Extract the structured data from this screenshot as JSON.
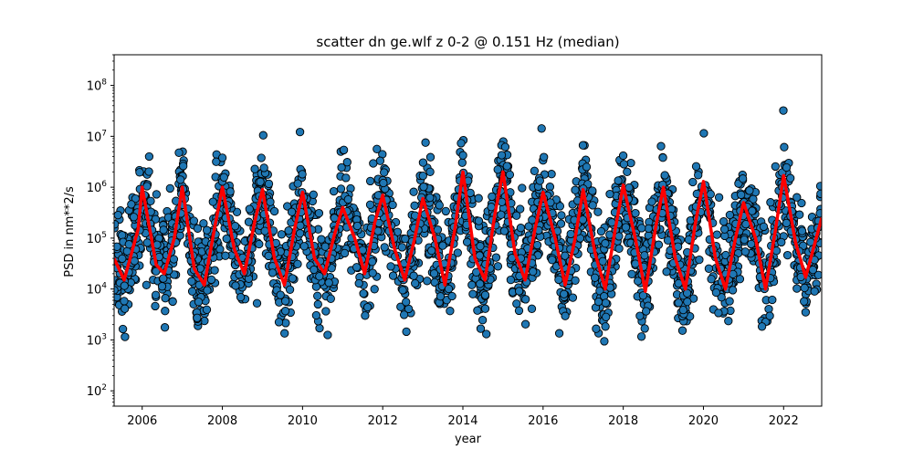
{
  "chart_data": {
    "type": "scatter",
    "title": "scatter dn ge.wlf z 0-2 @ 0.151 Hz (median)",
    "xlabel": "year",
    "ylabel": "PSD in nm**2/s",
    "xlim": [
      2005.3,
      2022.95
    ],
    "ylim": [
      50,
      400000000
    ],
    "yscale": "log",
    "grid": false,
    "x_ticks": [
      2006,
      2008,
      2010,
      2012,
      2014,
      2016,
      2018,
      2020,
      2022
    ],
    "x_tick_labels": [
      "2006",
      "2008",
      "2010",
      "2012",
      "2014",
      "2016",
      "2018",
      "2020",
      "2022"
    ],
    "y_ticks": [
      100,
      1000,
      10000,
      100000,
      1000000,
      10000000,
      100000000
    ],
    "y_tick_exponents": [
      "2",
      "3",
      "4",
      "5",
      "6",
      "7",
      "8"
    ],
    "y_tick_base": "10",
    "colors": {
      "scatter_fill": "#1f77b4",
      "scatter_edge": "#000000",
      "median_line": "#ff0000"
    },
    "series": [
      {
        "kind": "median_line",
        "x": [
          2005.3,
          2005.55,
          2005.9,
          2006.0,
          2006.35,
          2006.55,
          2006.8,
          2007.0,
          2007.3,
          2007.55,
          2007.8,
          2008.0,
          2008.3,
          2008.55,
          2008.8,
          2009.0,
          2009.3,
          2009.55,
          2009.8,
          2010.0,
          2010.3,
          2010.55,
          2010.8,
          2011.0,
          2011.3,
          2011.55,
          2011.8,
          2012.0,
          2012.3,
          2012.55,
          2012.8,
          2013.0,
          2013.3,
          2013.55,
          2013.8,
          2014.0,
          2014.3,
          2014.55,
          2014.8,
          2015.0,
          2015.3,
          2015.55,
          2015.8,
          2016.0,
          2016.3,
          2016.55,
          2016.8,
          2017.0,
          2017.3,
          2017.55,
          2017.8,
          2018.0,
          2018.3,
          2018.55,
          2018.8,
          2019.0,
          2019.3,
          2019.55,
          2019.8,
          2020.0,
          2020.3,
          2020.55,
          2020.8,
          2021.0,
          2021.3,
          2021.55,
          2021.8,
          2022.0,
          2022.3,
          2022.55,
          2022.95
        ],
        "y": [
          40000,
          15000,
          150000,
          1000000,
          30000,
          20000,
          100000,
          1000000,
          25000,
          12000,
          150000,
          1000000,
          60000,
          20000,
          200000,
          900000,
          40000,
          12000,
          150000,
          800000,
          40000,
          20000,
          120000,
          400000,
          100000,
          20000,
          200000,
          700000,
          60000,
          15000,
          100000,
          600000,
          100000,
          12000,
          150000,
          2000000,
          40000,
          15000,
          300000,
          2000000,
          50000,
          15000,
          150000,
          800000,
          100000,
          12000,
          100000,
          900000,
          50000,
          10000,
          150000,
          1100000,
          100000,
          9000,
          150000,
          1000000,
          40000,
          10000,
          200000,
          1300000,
          40000,
          10000,
          100000,
          500000,
          100000,
          10000,
          150000,
          1700000,
          80000,
          17000,
          250000
        ]
      }
    ],
    "scatter_summary": {
      "x_range": [
        2005.3,
        2022.95
      ],
      "y_range": [
        1000,
        35000000
      ],
      "seasonal_high": [
        1000000,
        2000000,
        5000000,
        10000000,
        15000000,
        20000000
      ],
      "seasonal_low": [
        2000,
        3000,
        5000,
        10000
      ]
    }
  }
}
